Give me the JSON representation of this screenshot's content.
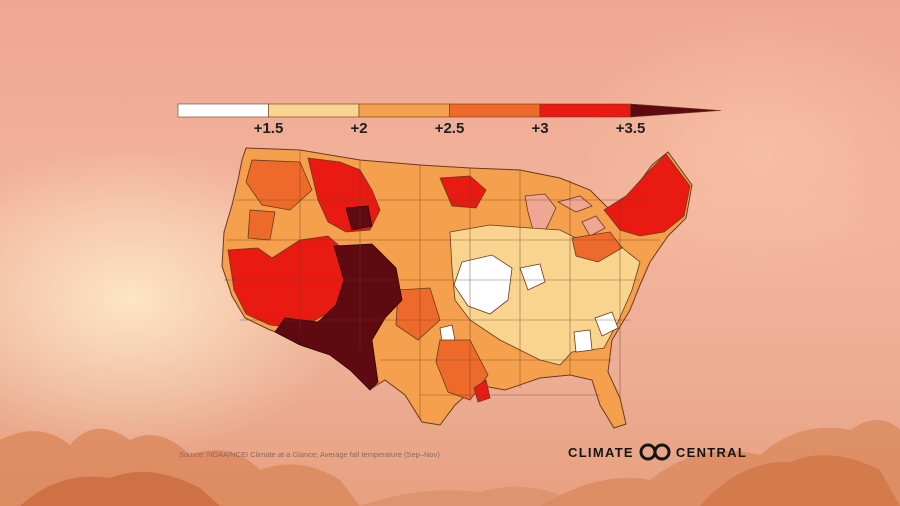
{
  "legend": {
    "ticks": [
      "+1.5",
      "+2",
      "+2.5",
      "+3",
      "+3.5"
    ],
    "bins": [
      {
        "color": "#ffffff"
      },
      {
        "color": "#f8d48e"
      },
      {
        "color": "#f5a04c"
      },
      {
        "color": "#ee6a2a"
      },
      {
        "color": "#e81a12"
      },
      {
        "color": "#5e0a10"
      }
    ]
  },
  "map": {
    "region": "contiguous United States (climate divisions)",
    "colors": {
      "white": "#ffffff",
      "light": "#f8d48e",
      "orange": "#f5a04c",
      "darkorange": "#ee6a2a",
      "red": "#e81a12",
      "maroon": "#5e0a10"
    }
  },
  "source_text": "Source: NOAA/NCEI Climate at a Glance; Average fall temperature (Sep–Nov)",
  "logo": {
    "left": "CLIMATE",
    "right": "CENTRAL"
  },
  "theme": {
    "background": "#efa793",
    "text": "#1f1f1f"
  }
}
